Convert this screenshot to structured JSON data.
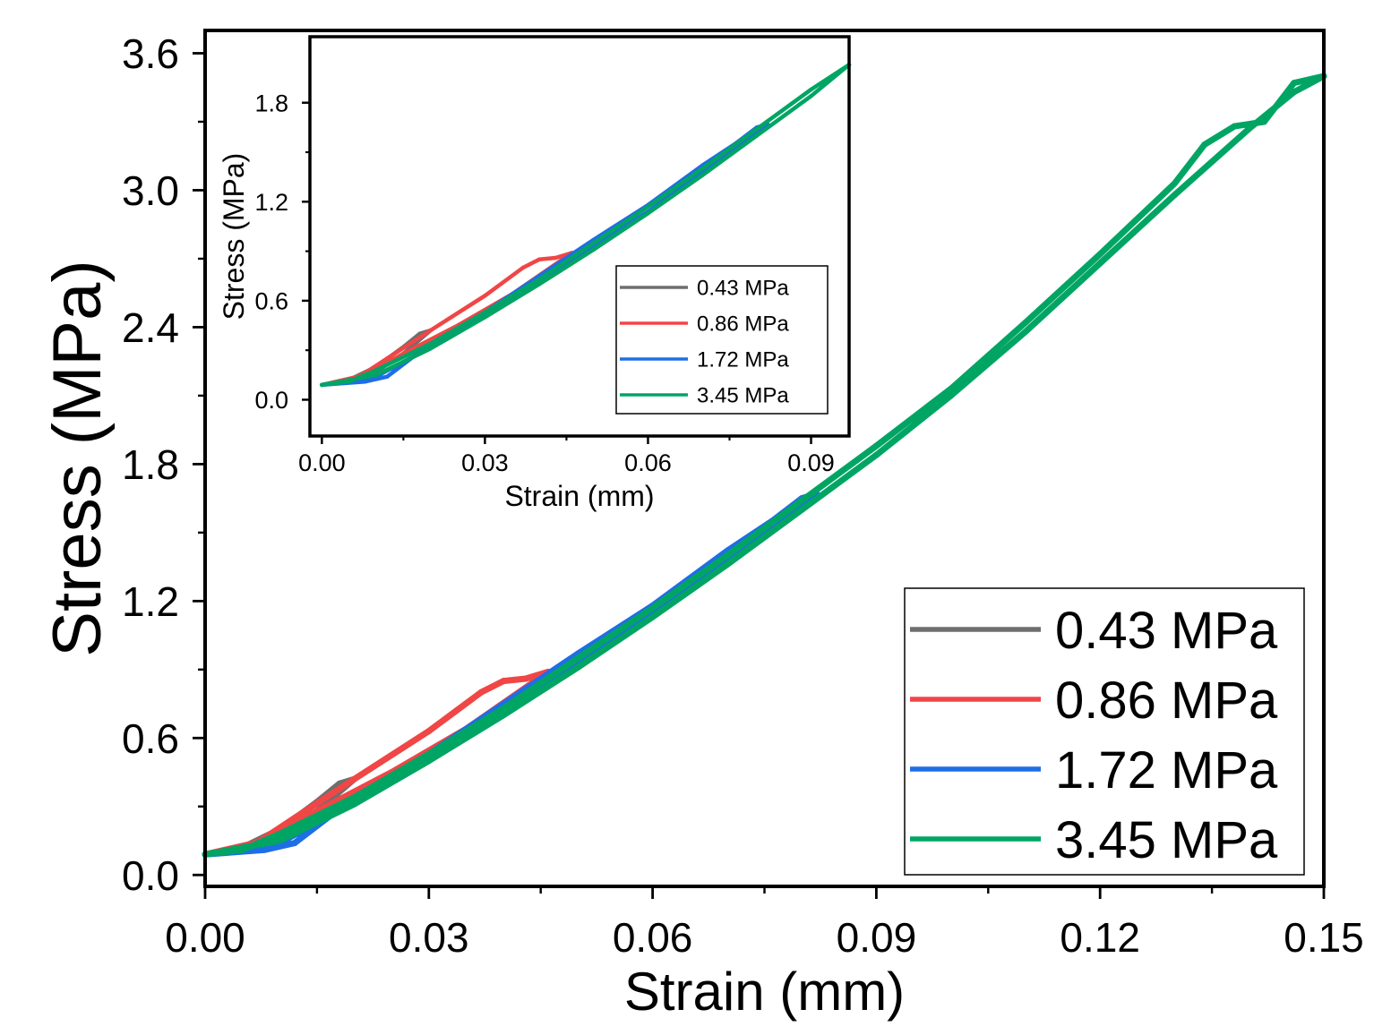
{
  "colors": {
    "s043": "#6e6e6e",
    "s086": "#f04646",
    "s172": "#1e6ee6",
    "s345": "#00a564"
  },
  "chart_data": [
    {
      "type": "line",
      "role": "main",
      "title": "",
      "xlabel": "Strain (mm)",
      "ylabel": "Stress (MPa)",
      "xlim": [
        0.0,
        0.15
      ],
      "ylim": [
        -0.05,
        3.7
      ],
      "xticks": [
        "0.00",
        "0.03",
        "0.06",
        "0.09",
        "0.12",
        "0.15"
      ],
      "xtick_values": [
        0.0,
        0.03,
        0.06,
        0.09,
        0.12,
        0.15
      ],
      "yticks": [
        "0.0",
        "0.6",
        "1.2",
        "1.8",
        "2.4",
        "3.0",
        "3.6"
      ],
      "ytick_values": [
        0.0,
        0.6,
        1.2,
        1.8,
        2.4,
        3.0,
        3.6
      ],
      "grid": false,
      "legend_position": "bottom-right",
      "series": [
        {
          "name": "0.43 MPa",
          "color_key": "s043",
          "loading": [
            [
              0.0,
              0.09
            ],
            [
              0.005,
              0.12
            ],
            [
              0.01,
              0.2
            ],
            [
              0.015,
              0.32
            ],
            [
              0.018,
              0.4
            ],
            [
              0.02,
              0.42
            ]
          ],
          "unloading": [
            [
              0.02,
              0.42
            ],
            [
              0.015,
              0.28
            ],
            [
              0.01,
              0.17
            ],
            [
              0.005,
              0.11
            ],
            [
              0.0,
              0.09
            ]
          ]
        },
        {
          "name": "0.86 MPa",
          "color_key": "s086",
          "loading": [
            [
              0.0,
              0.09
            ],
            [
              0.006,
              0.12
            ],
            [
              0.012,
              0.25
            ],
            [
              0.02,
              0.42
            ],
            [
              0.03,
              0.63
            ],
            [
              0.037,
              0.8
            ],
            [
              0.04,
              0.85
            ],
            [
              0.043,
              0.86
            ],
            [
              0.046,
              0.89
            ]
          ],
          "unloading": [
            [
              0.046,
              0.89
            ],
            [
              0.035,
              0.64
            ],
            [
              0.025,
              0.45
            ],
            [
              0.015,
              0.28
            ],
            [
              0.008,
              0.15
            ],
            [
              0.0,
              0.09
            ]
          ]
        },
        {
          "name": "1.72 MPa",
          "color_key": "s172",
          "loading": [
            [
              0.0,
              0.09
            ],
            [
              0.008,
              0.11
            ],
            [
              0.012,
              0.14
            ],
            [
              0.02,
              0.34
            ],
            [
              0.03,
              0.53
            ],
            [
              0.04,
              0.75
            ],
            [
              0.05,
              0.97
            ],
            [
              0.06,
              1.18
            ],
            [
              0.07,
              1.42
            ],
            [
              0.076,
              1.55
            ],
            [
              0.08,
              1.65
            ],
            [
              0.082,
              1.67
            ]
          ],
          "unloading": [
            [
              0.082,
              1.67
            ],
            [
              0.07,
              1.38
            ],
            [
              0.06,
              1.14
            ],
            [
              0.05,
              0.93
            ],
            [
              0.04,
              0.72
            ],
            [
              0.03,
              0.51
            ],
            [
              0.02,
              0.32
            ],
            [
              0.01,
              0.14
            ],
            [
              0.0,
              0.09
            ]
          ]
        },
        {
          "name": "3.45 MPa",
          "color_key": "s345",
          "loading": [
            [
              0.0,
              0.09
            ],
            [
              0.005,
              0.11
            ],
            [
              0.01,
              0.18
            ],
            [
              0.02,
              0.34
            ],
            [
              0.03,
              0.53
            ],
            [
              0.04,
              0.73
            ],
            [
              0.05,
              0.95
            ],
            [
              0.06,
              1.17
            ],
            [
              0.07,
              1.4
            ],
            [
              0.08,
              1.64
            ],
            [
              0.09,
              1.88
            ],
            [
              0.1,
              2.13
            ],
            [
              0.11,
              2.42
            ],
            [
              0.12,
              2.72
            ],
            [
              0.13,
              3.03
            ],
            [
              0.134,
              3.2
            ],
            [
              0.138,
              3.28
            ],
            [
              0.142,
              3.3
            ],
            [
              0.146,
              3.47
            ],
            [
              0.15,
              3.5
            ]
          ],
          "unloading": [
            [
              0.15,
              3.5
            ],
            [
              0.146,
              3.43
            ],
            [
              0.14,
              3.27
            ],
            [
              0.13,
              2.98
            ],
            [
              0.12,
              2.68
            ],
            [
              0.11,
              2.38
            ],
            [
              0.1,
              2.1
            ],
            [
              0.09,
              1.84
            ],
            [
              0.08,
              1.6
            ],
            [
              0.07,
              1.36
            ],
            [
              0.06,
              1.13
            ],
            [
              0.05,
              0.91
            ],
            [
              0.04,
              0.7
            ],
            [
              0.03,
              0.5
            ],
            [
              0.02,
              0.31
            ],
            [
              0.01,
              0.15
            ],
            [
              0.0,
              0.09
            ]
          ]
        }
      ]
    },
    {
      "type": "line",
      "role": "inset",
      "title": "",
      "xlabel": "Strain (mm)",
      "ylabel": "Stress (MPa)",
      "xlim": [
        -0.0022,
        0.097
      ],
      "ylim": [
        -0.22,
        2.2
      ],
      "xticks": [
        "0.00",
        "0.03",
        "0.06",
        "0.09"
      ],
      "xtick_values": [
        0.0,
        0.03,
        0.06,
        0.09
      ],
      "yticks": [
        "0.0",
        "0.6",
        "1.2",
        "1.8"
      ],
      "ytick_values": [
        0.0,
        0.6,
        1.2,
        1.8
      ],
      "grid": false,
      "legend_position": "bottom-right",
      "series": [
        {
          "name": "0.43 MPa",
          "color_key": "s043",
          "loading": [
            [
              0.0,
              0.09
            ],
            [
              0.005,
              0.12
            ],
            [
              0.01,
              0.2
            ],
            [
              0.015,
              0.32
            ],
            [
              0.018,
              0.4
            ],
            [
              0.02,
              0.42
            ]
          ],
          "unloading": [
            [
              0.02,
              0.42
            ],
            [
              0.015,
              0.28
            ],
            [
              0.01,
              0.17
            ],
            [
              0.005,
              0.11
            ],
            [
              0.0,
              0.09
            ]
          ]
        },
        {
          "name": "0.86 MPa",
          "color_key": "s086",
          "loading": [
            [
              0.0,
              0.09
            ],
            [
              0.006,
              0.12
            ],
            [
              0.012,
              0.25
            ],
            [
              0.02,
              0.42
            ],
            [
              0.03,
              0.63
            ],
            [
              0.037,
              0.8
            ],
            [
              0.04,
              0.85
            ],
            [
              0.043,
              0.86
            ],
            [
              0.046,
              0.89
            ]
          ],
          "unloading": [
            [
              0.046,
              0.89
            ],
            [
              0.035,
              0.64
            ],
            [
              0.025,
              0.45
            ],
            [
              0.015,
              0.28
            ],
            [
              0.008,
              0.15
            ],
            [
              0.0,
              0.09
            ]
          ]
        },
        {
          "name": "1.72 MPa",
          "color_key": "s172",
          "loading": [
            [
              0.0,
              0.09
            ],
            [
              0.008,
              0.11
            ],
            [
              0.012,
              0.14
            ],
            [
              0.02,
              0.34
            ],
            [
              0.03,
              0.53
            ],
            [
              0.04,
              0.75
            ],
            [
              0.05,
              0.97
            ],
            [
              0.06,
              1.18
            ],
            [
              0.07,
              1.42
            ],
            [
              0.076,
              1.55
            ],
            [
              0.08,
              1.65
            ],
            [
              0.082,
              1.67
            ]
          ],
          "unloading": [
            [
              0.082,
              1.67
            ],
            [
              0.07,
              1.38
            ],
            [
              0.06,
              1.14
            ],
            [
              0.05,
              0.93
            ],
            [
              0.04,
              0.72
            ],
            [
              0.03,
              0.51
            ],
            [
              0.02,
              0.32
            ],
            [
              0.01,
              0.14
            ],
            [
              0.0,
              0.09
            ]
          ]
        },
        {
          "name": "3.45 MPa",
          "color_key": "s345",
          "loading": [
            [
              0.0,
              0.09
            ],
            [
              0.005,
              0.11
            ],
            [
              0.01,
              0.18
            ],
            [
              0.02,
              0.34
            ],
            [
              0.03,
              0.53
            ],
            [
              0.04,
              0.73
            ],
            [
              0.05,
              0.95
            ],
            [
              0.06,
              1.17
            ],
            [
              0.07,
              1.4
            ],
            [
              0.08,
              1.64
            ],
            [
              0.09,
              1.88
            ],
            [
              0.097,
              2.03
            ]
          ],
          "unloading": [
            [
              0.097,
              2.03
            ],
            [
              0.09,
              1.84
            ],
            [
              0.08,
              1.6
            ],
            [
              0.07,
              1.36
            ],
            [
              0.06,
              1.13
            ],
            [
              0.05,
              0.91
            ],
            [
              0.04,
              0.7
            ],
            [
              0.03,
              0.5
            ],
            [
              0.02,
              0.31
            ],
            [
              0.01,
              0.15
            ],
            [
              0.0,
              0.09
            ]
          ]
        }
      ]
    }
  ]
}
